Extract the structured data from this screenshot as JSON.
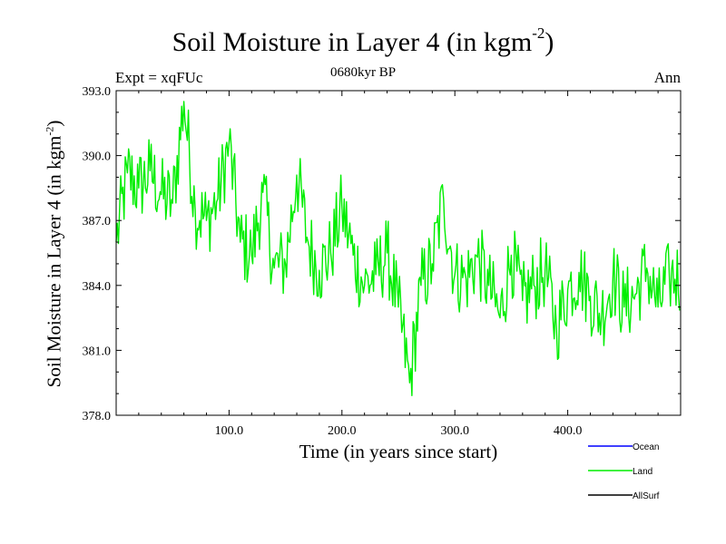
{
  "chart_data": {
    "type": "line",
    "title": "Soil Moisture in Layer 4 (in kgm",
    "title_superscript": "-2",
    "title_close": ")",
    "subtitle_left": "Expt = xqFUc",
    "subtitle_center": "0680kyr BP",
    "subtitle_right": "Ann",
    "xlabel": "Time (in years since start)",
    "ylabel": "Soil Moisture in Layer 4 (in kgm",
    "ylabel_superscript": "-2",
    "ylabel_close": ")",
    "xlim": [
      0,
      500
    ],
    "ylim": [
      378,
      393
    ],
    "x_ticks": [
      100,
      200,
      300,
      400
    ],
    "x_tick_labels": [
      "100.0",
      "200.0",
      "300.0",
      "400.0"
    ],
    "y_ticks": [
      378,
      381,
      384,
      387,
      390,
      393
    ],
    "y_tick_labels": [
      "378.0",
      "381.0",
      "384.0",
      "387.0",
      "390.0",
      "393.0"
    ],
    "legend": [
      {
        "name": "Ocean",
        "color": "#0000ff"
      },
      {
        "name": "Land",
        "color": "#00ee00"
      },
      {
        "name": "AllSurf",
        "color": "#000000"
      }
    ],
    "series": [
      {
        "name": "Land",
        "color": "#00ee00",
        "x_start": 0,
        "x_step": 10,
        "values": [
          386.0,
          389.2,
          388.5,
          389.3,
          388.2,
          387.8,
          392.5,
          387.5,
          387.0,
          388.0,
          390.6,
          386.0,
          385.4,
          388.3,
          384.8,
          385.0,
          389.1,
          386.0,
          384.7,
          385.5,
          387.6,
          385.4,
          384.0,
          384.5,
          385.5,
          383.0,
          379.5,
          384.0,
          385.0,
          388.0,
          384.5,
          384.3,
          385.3,
          384.0,
          382.5,
          385.4,
          383.3,
          384.0,
          384.7,
          382.0,
          383.8,
          384.6,
          383.5,
          382.6,
          384.4,
          383.0,
          383.6,
          384.8,
          383.0,
          384.4
        ]
      }
    ]
  }
}
